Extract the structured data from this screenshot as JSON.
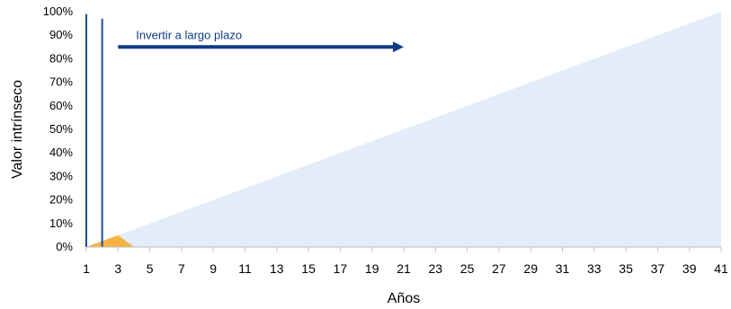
{
  "chart_data": {
    "type": "area",
    "xlabel": "Años",
    "ylabel": "Valor intrínseco",
    "x": [
      1,
      41
    ],
    "xlim": [
      1,
      41
    ],
    "xticks": [
      1,
      3,
      5,
      7,
      9,
      11,
      13,
      15,
      17,
      19,
      21,
      23,
      25,
      27,
      29,
      31,
      33,
      35,
      37,
      39,
      41
    ],
    "ylim": [
      0,
      100
    ],
    "yticks": [
      "0%",
      "10%",
      "20%",
      "30%",
      "40%",
      "50%",
      "60%",
      "70%",
      "80%",
      "90%",
      "100%"
    ],
    "series": [
      {
        "x": [
          1,
          41
        ],
        "y": [
          0,
          100
        ],
        "color": "#e3edfa"
      },
      {
        "x": [
          1,
          3,
          4
        ],
        "y": [
          0,
          5,
          0
        ],
        "color": "#f5b342"
      }
    ],
    "vertical_lines": [
      {
        "x": 1,
        "y_top": 99,
        "color": "#1f4e96"
      },
      {
        "x": 2,
        "y_top": 97,
        "color": "#1f4e96"
      }
    ],
    "annotation": {
      "text": "Invertir a largo plazo",
      "x_start": 3,
      "x_end": 21,
      "y": 85,
      "color": "#0d3b86"
    },
    "grid": false,
    "legend": "none"
  }
}
